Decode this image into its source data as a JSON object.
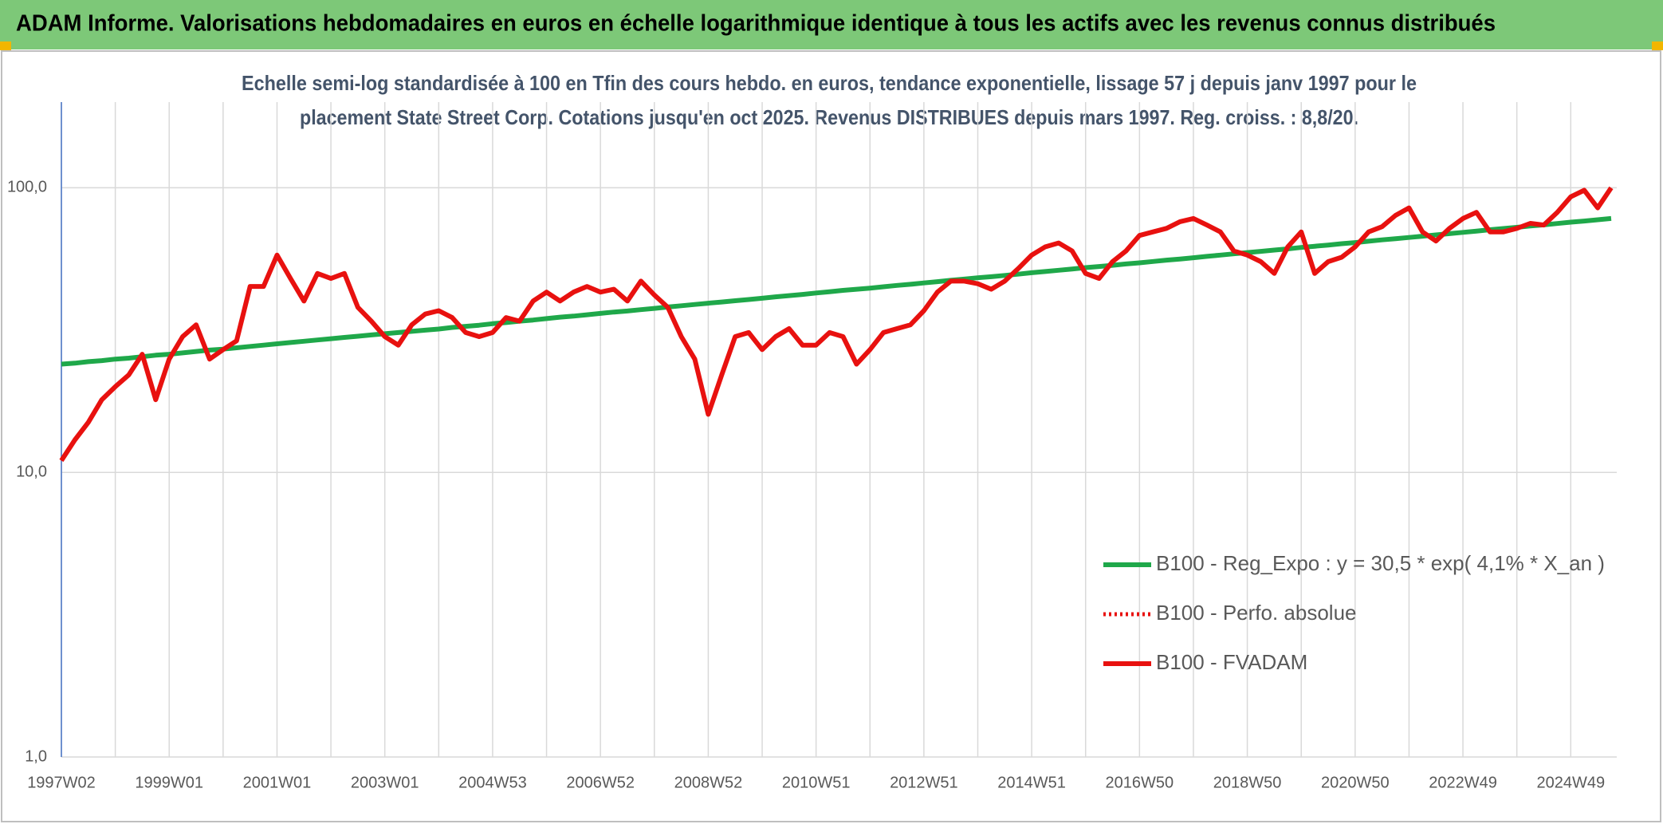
{
  "chart_data": {
    "type": "line",
    "title": "ADAM Informe. Valorisations hebdomadaires en euros en échelle logarithmique identique à tous les actifs avec les revenus connus distribués",
    "subtitle": [
      "Echelle semi-log standardisée à 100 en Tfin des cours hebdo. en euros, tendance exponentielle, lissage 57 j depuis janv 1997 pour le",
      "placement State Street Corp. Cotations jusqu'en oct 2025. Revenus DISTRIBUES depuis mars 1997. Reg. croiss. : 8,8/20."
    ],
    "log_scale": true,
    "grid": true,
    "ylim": [
      1,
      200
    ],
    "yticks": [
      {
        "value": 1,
        "label": "1,0"
      },
      {
        "value": 10,
        "label": "10,0"
      },
      {
        "value": 100,
        "label": "100,0"
      }
    ],
    "categories": [
      "1997W02",
      null,
      null,
      null,
      null,
      null,
      null,
      null,
      "1999W01",
      null,
      null,
      null,
      null,
      null,
      null,
      null,
      "2001W01",
      null,
      null,
      null,
      null,
      null,
      null,
      null,
      "2003W01",
      null,
      null,
      null,
      null,
      null,
      null,
      null,
      "2004W53",
      null,
      null,
      null,
      null,
      null,
      null,
      null,
      "2006W52",
      null,
      null,
      null,
      null,
      null,
      null,
      null,
      "2008W52",
      null,
      null,
      null,
      null,
      null,
      null,
      null,
      "2010W51",
      null,
      null,
      null,
      null,
      null,
      null,
      null,
      "2012W51",
      null,
      null,
      null,
      null,
      null,
      null,
      null,
      "2014W51",
      null,
      null,
      null,
      null,
      null,
      null,
      null,
      "2016W50",
      null,
      null,
      null,
      null,
      null,
      null,
      null,
      "2018W50",
      null,
      null,
      null,
      null,
      null,
      null,
      null,
      "2020W50",
      null,
      null,
      null,
      null,
      null,
      null,
      null,
      "2022W49",
      null,
      null,
      null,
      null,
      null,
      null,
      null,
      "2024W49",
      null,
      null,
      null
    ],
    "series": [
      {
        "name": "B100 - Reg_Expo : y = 30,5 * exp( 4,1% *  X_an )",
        "color": "#1fa84a",
        "values": [
          24.0,
          24.2,
          24.5,
          24.7,
          25.0,
          25.2,
          25.5,
          25.8,
          26.0,
          26.3,
          26.6,
          26.9,
          27.1,
          27.4,
          27.7,
          28.0,
          28.3,
          28.6,
          28.9,
          29.2,
          29.5,
          29.8,
          30.1,
          30.4,
          30.7,
          31.0,
          31.3,
          31.6,
          31.9,
          32.3,
          32.6,
          32.9,
          33.3,
          33.6,
          34.0,
          34.3,
          34.7,
          35.1,
          35.4,
          35.8,
          36.2,
          36.6,
          36.9,
          37.3,
          37.7,
          38.1,
          38.5,
          38.9,
          39.3,
          39.7,
          40.1,
          40.5,
          40.9,
          41.4,
          41.8,
          42.2,
          42.7,
          43.1,
          43.6,
          44.0,
          44.4,
          44.9,
          45.4,
          45.8,
          46.3,
          46.8,
          47.3,
          47.8,
          48.3,
          48.7,
          49.2,
          49.7,
          50.3,
          50.8,
          51.3,
          51.8,
          52.4,
          52.9,
          53.4,
          54.0,
          54.5,
          55.1,
          55.7,
          56.2,
          56.8,
          57.4,
          58.0,
          58.6,
          59.2,
          59.8,
          60.4,
          61.0,
          61.7,
          62.3,
          62.9,
          63.6,
          64.2,
          64.9,
          65.6,
          66.2,
          66.9,
          67.6,
          68.3,
          69.0,
          69.7,
          70.4,
          71.2,
          71.9,
          72.6,
          73.4,
          74.1,
          74.9,
          75.7,
          76.4,
          77.2,
          78.0
        ]
      },
      {
        "name": "B100 - Perfo. absolue",
        "color": "#e8110f",
        "dash": "dotted",
        "values": [
          11,
          13,
          15,
          18,
          20,
          22,
          26,
          18,
          25,
          30,
          33,
          25,
          27,
          29,
          45,
          45,
          58,
          48,
          40,
          50,
          48,
          50,
          38,
          34,
          30,
          28,
          33,
          36,
          37,
          35,
          31,
          30,
          31,
          35,
          34,
          40,
          43,
          40,
          43,
          45,
          43,
          44,
          40,
          47,
          42,
          38,
          30,
          25,
          16,
          22,
          30,
          31,
          27,
          30,
          32,
          28,
          28,
          31,
          30,
          24,
          27,
          31,
          32,
          33,
          37,
          43,
          47,
          47,
          46,
          44,
          47,
          52,
          58,
          62,
          64,
          60,
          50,
          48,
          55,
          60,
          68,
          70,
          72,
          76,
          78,
          74,
          70,
          60,
          58,
          55,
          50,
          62,
          70,
          50,
          55,
          57,
          62,
          70,
          73,
          80,
          85,
          70,
          65,
          72,
          78,
          82,
          70,
          70,
          72,
          75,
          74,
          82,
          93,
          98,
          85,
          100
        ]
      },
      {
        "name": "B100 - FVADAM",
        "color": "#e8110f",
        "values": [
          11,
          13,
          15,
          18,
          20,
          22,
          26,
          18,
          25,
          30,
          33,
          25,
          27,
          29,
          45,
          45,
          58,
          48,
          40,
          50,
          48,
          50,
          38,
          34,
          30,
          28,
          33,
          36,
          37,
          35,
          31,
          30,
          31,
          35,
          34,
          40,
          43,
          40,
          43,
          45,
          43,
          44,
          40,
          47,
          42,
          38,
          30,
          25,
          16,
          22,
          30,
          31,
          27,
          30,
          32,
          28,
          28,
          31,
          30,
          24,
          27,
          31,
          32,
          33,
          37,
          43,
          47,
          47,
          46,
          44,
          47,
          52,
          58,
          62,
          64,
          60,
          50,
          48,
          55,
          60,
          68,
          70,
          72,
          76,
          78,
          74,
          70,
          60,
          58,
          55,
          50,
          62,
          70,
          50,
          55,
          57,
          62,
          70,
          73,
          80,
          85,
          70,
          65,
          72,
          78,
          82,
          70,
          70,
          72,
          75,
          74,
          82,
          93,
          98,
          85,
          100
        ]
      }
    ]
  }
}
